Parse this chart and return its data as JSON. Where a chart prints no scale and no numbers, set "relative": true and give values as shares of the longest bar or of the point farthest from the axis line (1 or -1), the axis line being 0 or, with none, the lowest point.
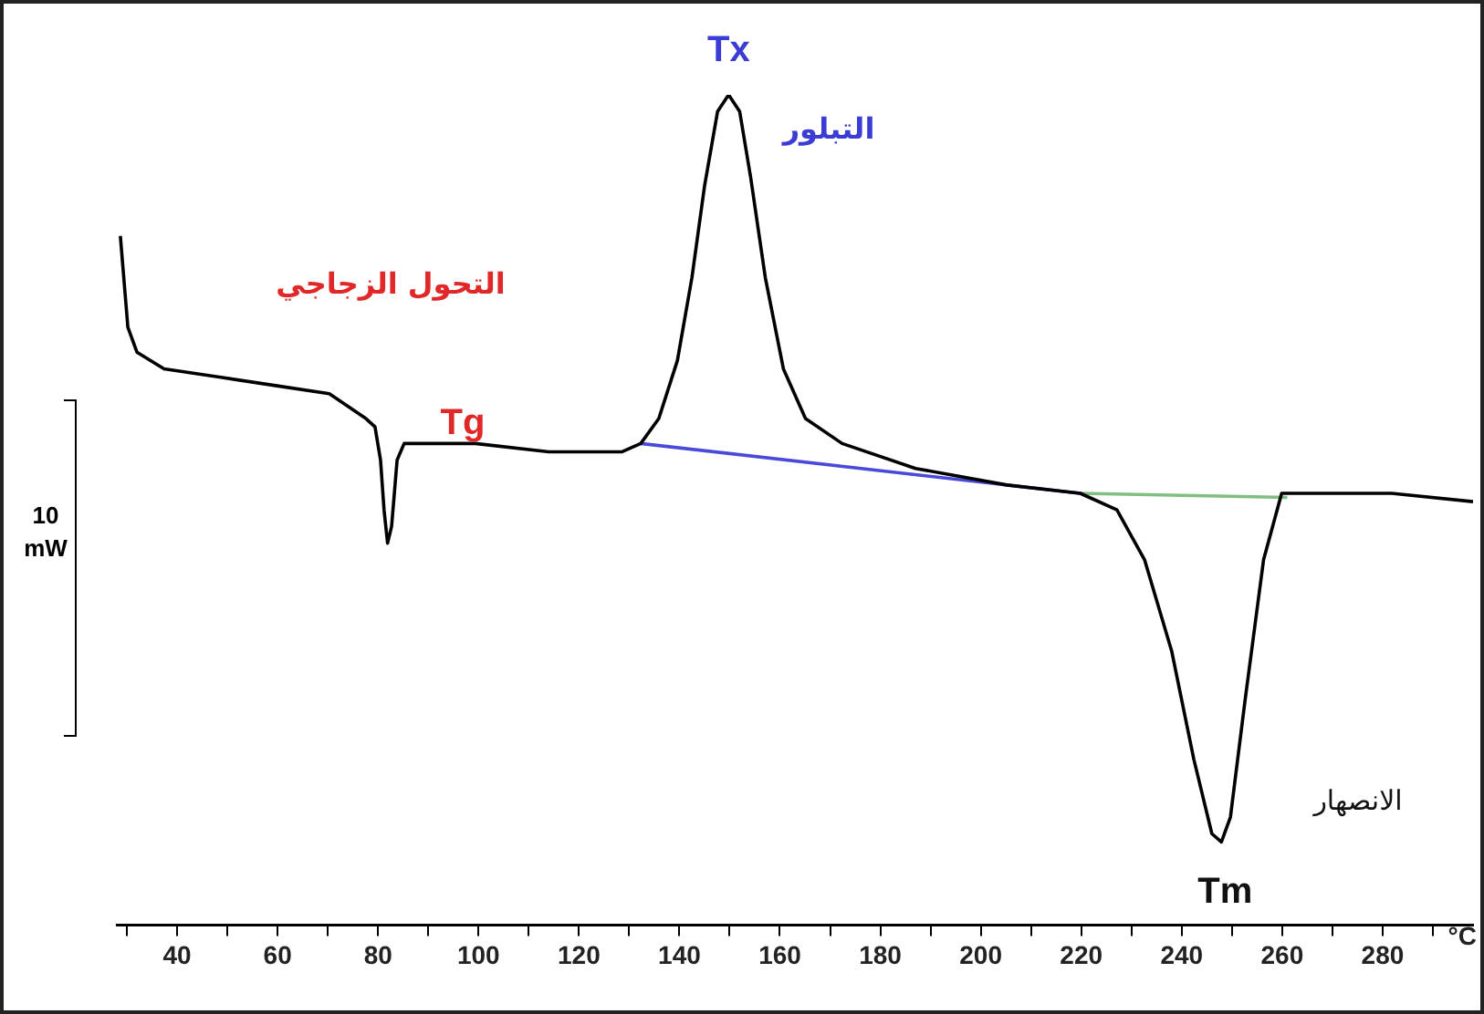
{
  "chart_data": {
    "type": "line",
    "relative": true,
    "xlabel": "°C",
    "grid": false,
    "legend": false,
    "marker": "none",
    "line_style": "solid",
    "xlim": [
      28,
      298
    ],
    "xticks": [
      {
        "value": 30,
        "label": null
      },
      40,
      {
        "value": 50,
        "label": null
      },
      60,
      {
        "value": 70,
        "label": null
      },
      80,
      {
        "value": 90,
        "label": null
      },
      100,
      {
        "value": 110,
        "label": null
      },
      120,
      {
        "value": 130,
        "label": null
      },
      140,
      {
        "value": 150,
        "label": null
      },
      160,
      {
        "value": 170,
        "label": null
      },
      180,
      {
        "value": 190,
        "label": null
      },
      200,
      {
        "value": 210,
        "label": null
      },
      220,
      {
        "value": 230,
        "label": null
      },
      240,
      {
        "value": 250,
        "label": null
      },
      260,
      {
        "value": 270,
        "label": null
      },
      280,
      {
        "value": 290,
        "label": null
      }
    ],
    "series": [
      {
        "color": "#000000",
        "x": [
          28.7,
          30.2,
          32,
          37.4,
          48.4,
          59.3,
          70.3,
          77.6,
          79.4,
          80.5,
          81.2,
          81.9,
          82.7,
          83.8,
          85.2,
          87.8,
          99.4,
          114,
          128.6,
          132.3,
          135.9,
          139.6,
          142.5,
          145,
          147.6,
          149.8,
          152,
          154.2,
          157.1,
          160.7,
          165.1,
          172.4,
          187,
          205.2,
          219.8,
          227.1,
          232.6,
          238,
          242.4,
          246,
          247.9,
          249.7,
          252.6,
          256.3,
          259.9,
          267.2,
          281.8,
          298
        ],
        "values": [
          0.83,
          0.72,
          0.69,
          0.67,
          0.66,
          0.65,
          0.64,
          0.61,
          0.6,
          0.56,
          0.5,
          0.46,
          0.48,
          0.56,
          0.58,
          0.58,
          0.58,
          0.57,
          0.57,
          0.58,
          0.61,
          0.68,
          0.78,
          0.89,
          0.98,
          1,
          0.98,
          0.9,
          0.78,
          0.67,
          0.61,
          0.58,
          0.55,
          0.53,
          0.52,
          0.5,
          0.44,
          0.33,
          0.2,
          0.11,
          0.1,
          0.13,
          0.27,
          0.44,
          0.52,
          0.52,
          0.52,
          0.51
        ]
      },
      {
        "color": "#4a4ad8",
        "x": [
          132.3,
          219.8
        ],
        "values": [
          0.58,
          0.52
        ]
      },
      {
        "color": "#7fbf7f",
        "x": [
          219.8,
          261
        ],
        "values": [
          0.52,
          0.515
        ]
      }
    ],
    "annotations": [
      {
        "text": "Tx",
        "x": 149.8,
        "y": 1
      },
      "التبلور",
      {
        "text": "Tg",
        "x": 80.5,
        "y": 0.56
      },
      "التحول الزجاجي",
      {
        "text": "Tm",
        "x": 247.9,
        "y": 0.1
      },
      "الانصهار",
      "10 mW"
    ]
  }
}
